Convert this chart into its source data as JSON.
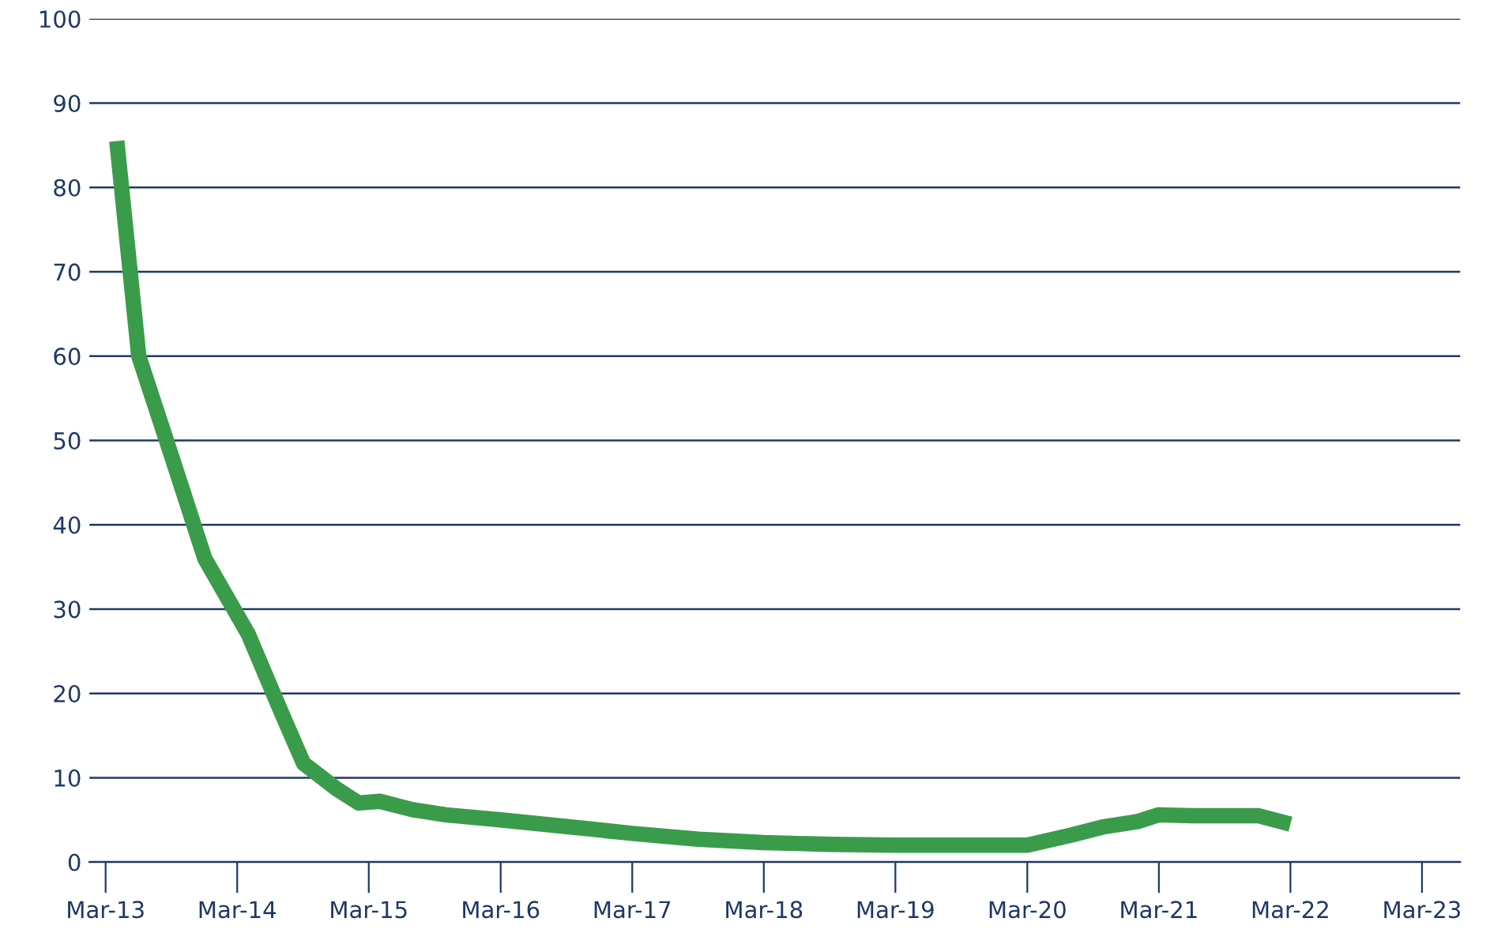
{
  "chart_data": {
    "type": "line",
    "x": [
      "2013-04",
      "2013-06",
      "2013-09",
      "2013-12",
      "2014-04",
      "2014-07",
      "2014-09",
      "2014-12",
      "2015-02",
      "2015-04",
      "2015-07",
      "2015-10",
      "2016-03",
      "2016-09",
      "2017-03",
      "2017-09",
      "2018-03",
      "2018-09",
      "2019-03",
      "2019-09",
      "2020-03",
      "2020-07",
      "2020-10",
      "2021-01",
      "2021-03",
      "2021-06",
      "2021-09",
      "2021-12",
      "2022-03"
    ],
    "series": [
      {
        "color": "#3a9c4a",
        "values": [
          85.5,
          60,
          48,
          36,
          27,
          17.8,
          11.7,
          8.7,
          7,
          7.2,
          6.2,
          5.6,
          5,
          4.2,
          3.4,
          2.7,
          2.3,
          2.1,
          2,
          2,
          2,
          3.2,
          4.2,
          4.8,
          5.6,
          5.5,
          5.5,
          5.5,
          4.5
        ]
      }
    ],
    "xlim": [
      "2013-01-15",
      "2023-06-15"
    ],
    "xticks": [
      {
        "value": "2013-03",
        "label": "Mar-13"
      },
      {
        "value": "2014-03",
        "label": "Mar-14"
      },
      {
        "value": "2015-03",
        "label": "Mar-15"
      },
      {
        "value": "2016-03",
        "label": "Mar-16"
      },
      {
        "value": "2017-03",
        "label": "Mar-17"
      },
      {
        "value": "2018-03",
        "label": "Mar-18"
      },
      {
        "value": "2019-03",
        "label": "Mar-19"
      },
      {
        "value": "2020-03",
        "label": "Mar-20"
      },
      {
        "value": "2021-03",
        "label": "Mar-21"
      },
      {
        "value": "2022-03",
        "label": "Mar-22"
      },
      {
        "value": "2023-03",
        "label": "Mar-23"
      }
    ],
    "ylim": [
      0,
      100
    ],
    "yticks": [
      0,
      10,
      20,
      30,
      40,
      50,
      60,
      70,
      80,
      90,
      100
    ],
    "grid": "y",
    "line_style": "solid",
    "marker": "none"
  }
}
